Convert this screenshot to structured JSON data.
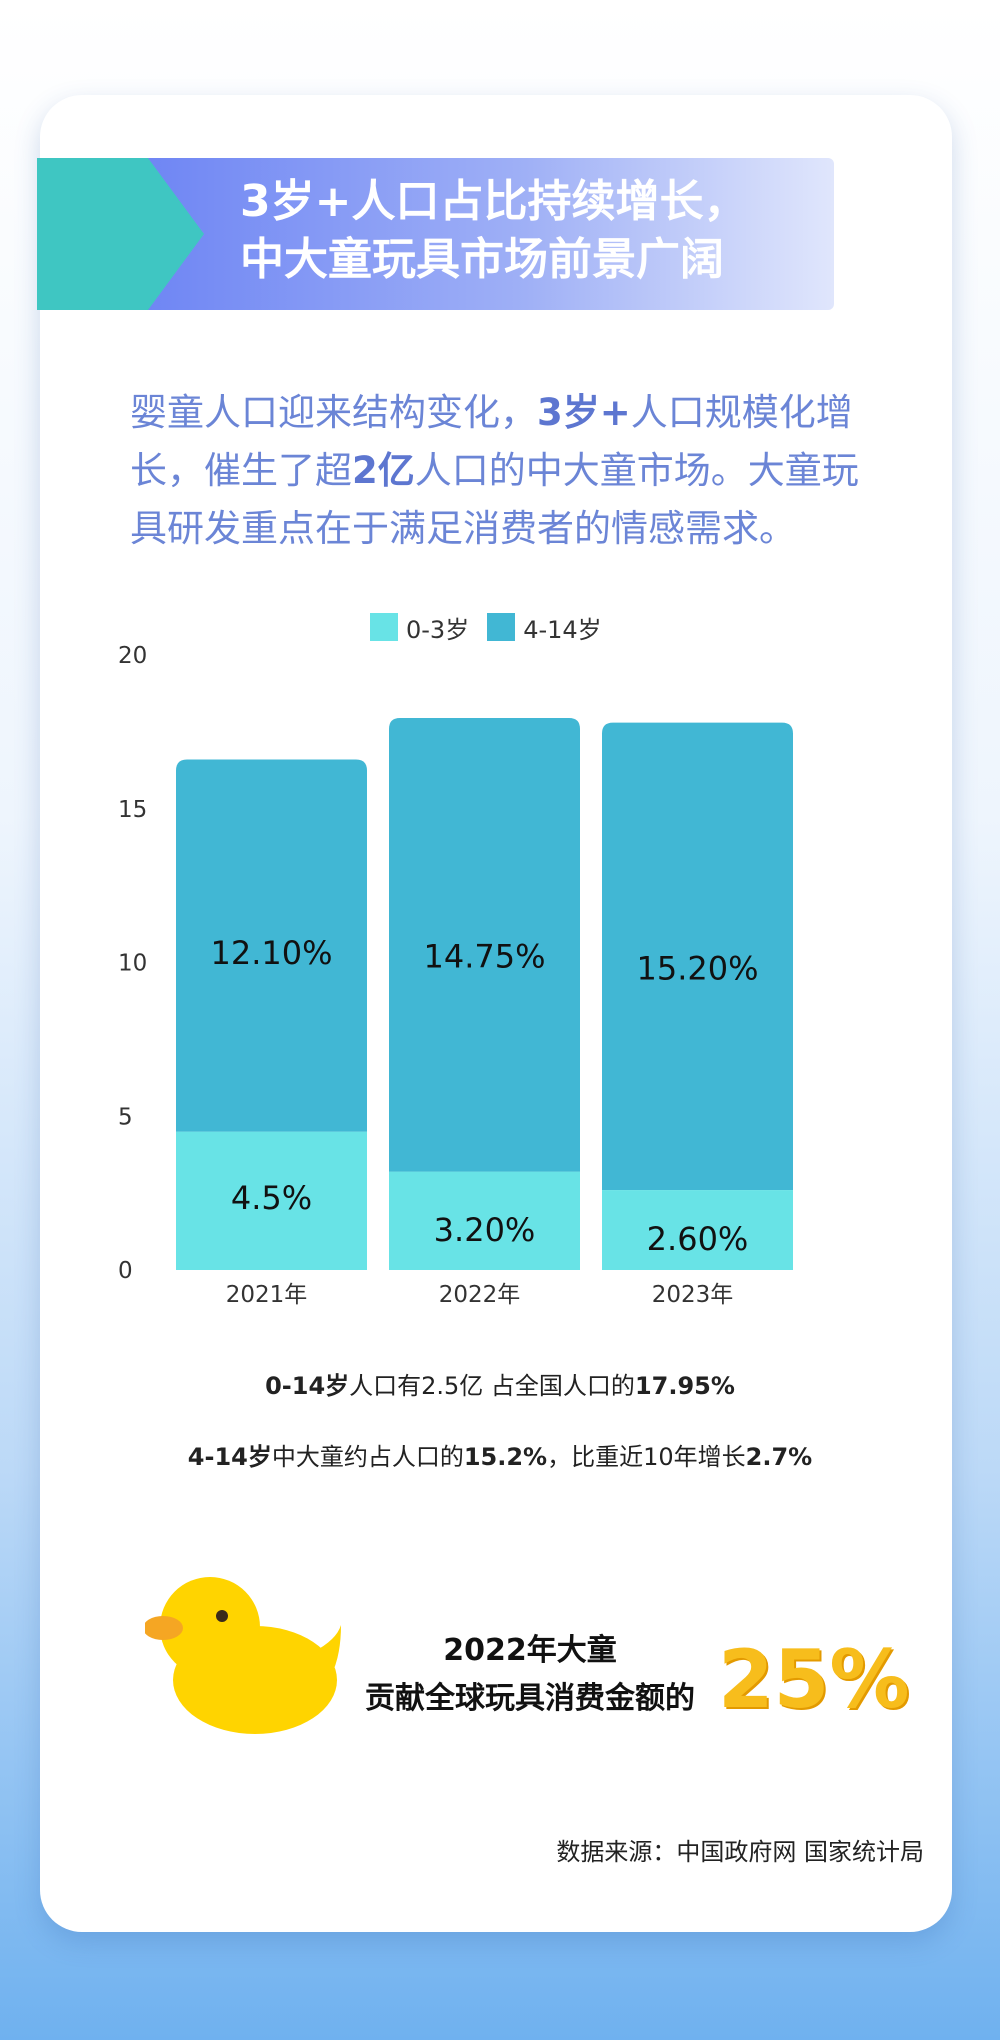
{
  "banner": {
    "title_line1": "3岁+人口占比持续增长，",
    "title_line2": "中大童玩具市场前景广阔"
  },
  "intro": {
    "p1": "婴童人口迎来结构变化，",
    "b1": "3岁+",
    "p2": "人口规模化增长，催生了超",
    "b2": "2亿",
    "p3": "人口的中大童市场。大童玩具研发重点在于满足消费者的情感需求。"
  },
  "colors": {
    "age_0_3": "#68e3e6",
    "age_4_14": "#41b7d4",
    "banner_teal": "#3fc6c2",
    "banner_blue": "#6f86f4",
    "accent_gold": "#f7bd1c",
    "duck_yellow": "#ffd400",
    "beak_orange": "#f5a623"
  },
  "chart_data": {
    "type": "bar",
    "stacked": true,
    "categories": [
      "2021年",
      "2022年",
      "2023年"
    ],
    "series": [
      {
        "name": "0-3岁",
        "values": [
          4.5,
          3.2,
          2.6
        ],
        "labels": [
          "4.5%",
          "3.20%",
          "2.60%"
        ]
      },
      {
        "name": "4-14岁",
        "values": [
          12.1,
          14.75,
          15.2
        ],
        "labels": [
          "12.10%",
          "14.75%",
          "15.20%"
        ]
      }
    ],
    "ylim": [
      0,
      20
    ],
    "yticks": [
      0,
      5,
      10,
      15,
      20
    ],
    "legend_position": "top-center",
    "grid": false
  },
  "stats": {
    "s1_bold_a": "0-14岁",
    "s1_text_a": "人口有2.5亿 占全国人口的",
    "s1_bold_b": "17.95%",
    "s2_bold_a": "4-14岁",
    "s2_text_a": "中大童约占人口的",
    "s2_bold_b": "15.2%",
    "s2_text_b": "，比重近10年增长",
    "s2_bold_c": "2.7%"
  },
  "highlight": {
    "line1": "2022年大童",
    "line2": "贡献全球玩具消费金额的",
    "value": "25%"
  },
  "source": "数据来源：中国政府网 国家统计局"
}
